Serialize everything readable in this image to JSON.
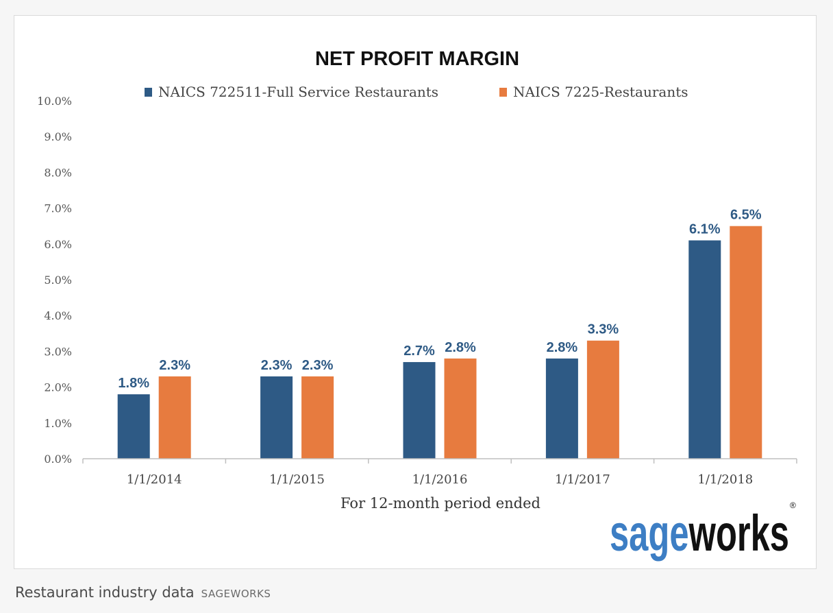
{
  "chart_data": {
    "type": "bar",
    "title": "NET PROFIT MARGIN",
    "xlabel": "For 12-month period ended",
    "ylabel": "",
    "categories": [
      "1/1/2014",
      "1/1/2015",
      "1/1/2016",
      "1/1/2017",
      "1/1/2018"
    ],
    "series": [
      {
        "name": "NAICS 722511-Full Service Restaurants",
        "color": "#2e5a85",
        "values": [
          1.8,
          2.3,
          2.7,
          2.8,
          6.1
        ],
        "labels": [
          "1.8%",
          "2.3%",
          "2.7%",
          "2.8%",
          "6.1%"
        ]
      },
      {
        "name": "NAICS 7225-Restaurants",
        "color": "#e77b3f",
        "values": [
          2.3,
          2.3,
          2.8,
          3.3,
          6.5
        ],
        "labels": [
          "2.3%",
          "2.3%",
          "2.8%",
          "3.3%",
          "6.5%"
        ]
      }
    ],
    "ylim": [
      0,
      10
    ],
    "yticks": [
      "0.0%",
      "1.0%",
      "2.0%",
      "3.0%",
      "4.0%",
      "5.0%",
      "6.0%",
      "7.0%",
      "8.0%",
      "9.0%",
      "10.0%"
    ],
    "grid": false,
    "legend_position": "top",
    "data_label_color": "#2e5a85"
  },
  "logo": {
    "text_light": "sage",
    "text_dark": "works",
    "mark": "®"
  },
  "caption": {
    "text": "Restaurant industry data",
    "credit": "SAGEWORKS"
  }
}
